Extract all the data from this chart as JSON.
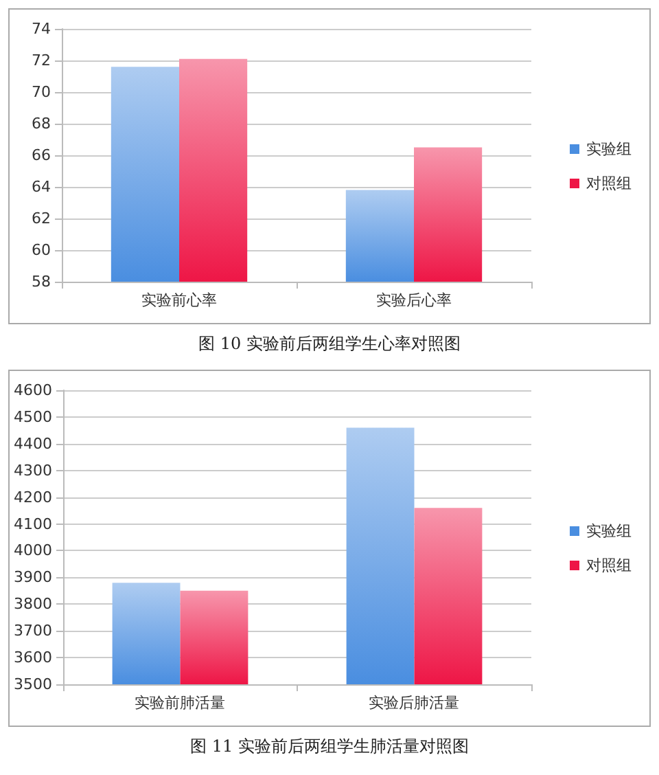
{
  "chart_data": [
    {
      "type": "bar",
      "title": "图 10 实验前后两组学生心率对照图",
      "categories": [
        "实验前心率",
        "实验后心率"
      ],
      "series": [
        {
          "name": "实验组",
          "color": "#4a8ee0",
          "values": [
            71.6,
            63.8
          ]
        },
        {
          "name": "对照组",
          "color": "#ee1646",
          "values": [
            72.1,
            66.5
          ]
        }
      ],
      "ylim": [
        58,
        74
      ],
      "yticks": [
        58,
        60,
        62,
        64,
        66,
        68,
        70,
        72,
        74
      ],
      "grid": "y",
      "legend": "right"
    },
    {
      "type": "bar",
      "title": "图 11 实验前后两组学生肺活量对照图",
      "categories": [
        "实验前肺活量",
        "实验后肺活量"
      ],
      "series": [
        {
          "name": "实验组",
          "color": "#4a8ee0",
          "values": [
            3880,
            4460
          ]
        },
        {
          "name": "对照组",
          "color": "#ee1646",
          "values": [
            3850,
            4160
          ]
        }
      ],
      "ylim": [
        3500,
        4600
      ],
      "yticks": [
        3500,
        3600,
        3700,
        3800,
        3900,
        4000,
        4100,
        4200,
        4300,
        4400,
        4500,
        4600
      ],
      "grid": "y",
      "legend": "right"
    }
  ]
}
